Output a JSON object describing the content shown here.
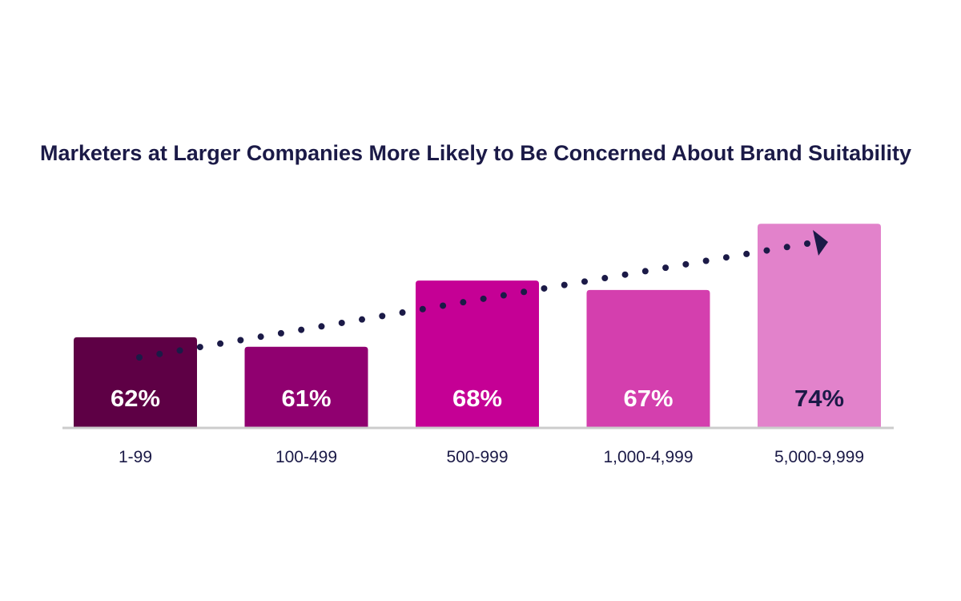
{
  "chart_data": {
    "type": "bar",
    "title": "Marketers at Larger Companies More Likely to Be Concerned About Brand Suitability",
    "xlabel": "",
    "ylabel": "",
    "categories": [
      "1-99",
      "100-499",
      "500-999",
      "1,000-4,999",
      "5,000-9,999"
    ],
    "values": [
      62,
      61,
      68,
      67,
      74
    ],
    "value_labels": [
      "62%",
      "61%",
      "68%",
      "67%",
      "74%"
    ],
    "ylim": [
      52.5,
      75
    ],
    "grid": false,
    "bar_colors": [
      "#5e0045",
      "#900070",
      "#c50095",
      "#d43fae",
      "#e282cb"
    ],
    "label_colors": [
      "#ffffff",
      "#ffffff",
      "#ffffff",
      "#ffffff",
      "#1b1a47"
    ],
    "trend_arrow": {
      "style": "dotted",
      "color": "#1b1a47",
      "direction": "increasing"
    },
    "axis_color": "#cccccc"
  }
}
